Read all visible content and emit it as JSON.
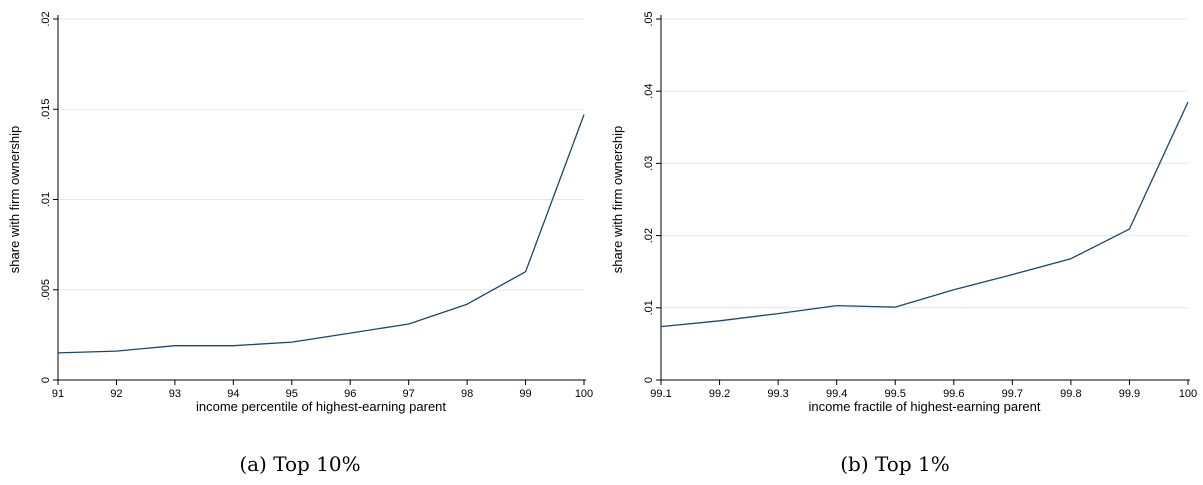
{
  "chart_data": [
    {
      "type": "line",
      "caption": "(a) Top 10%",
      "xlabel": "income percentile of highest-earning parent",
      "ylabel": "share with firm ownership",
      "x": [
        91,
        92,
        93,
        94,
        95,
        96,
        97,
        98,
        99,
        100
      ],
      "x_tick_labels": [
        "91",
        "92",
        "93",
        "94",
        "95",
        "96",
        "97",
        "98",
        "99",
        "100"
      ],
      "y_ticks": [
        0,
        0.005,
        0.01,
        0.015,
        0.02
      ],
      "y_tick_labels": [
        "0",
        ".005",
        ".01",
        ".015",
        ".02"
      ],
      "ylim": [
        0,
        0.02
      ],
      "xlim": [
        91,
        100
      ],
      "grid": "horizontal",
      "series": [
        {
          "values": [
            0.0015,
            0.0016,
            0.0019,
            0.0019,
            0.0021,
            0.0026,
            0.0031,
            0.0042,
            0.006,
            0.0147
          ]
        }
      ],
      "line_color": "#1a476f"
    },
    {
      "type": "line",
      "caption": "(b) Top 1%",
      "xlabel": "income fractile of highest-earning parent",
      "ylabel": "share with firm ownership",
      "x": [
        99.1,
        99.2,
        99.3,
        99.4,
        99.5,
        99.6,
        99.7,
        99.8,
        99.9,
        100
      ],
      "x_tick_labels": [
        "99.1",
        "99.2",
        "99.3",
        "99.4",
        "99.5",
        "99.6",
        "99.7",
        "99.8",
        "99.9",
        "100"
      ],
      "y_ticks": [
        0,
        0.01,
        0.02,
        0.03,
        0.04,
        0.05
      ],
      "y_tick_labels": [
        "0",
        ".01",
        ".02",
        ".03",
        ".04",
        ".05"
      ],
      "ylim": [
        0,
        0.05
      ],
      "xlim": [
        99.1,
        100
      ],
      "grid": "horizontal",
      "series": [
        {
          "values": [
            0.0074,
            0.0082,
            0.0092,
            0.0103,
            0.0101,
            0.0125,
            0.0146,
            0.0168,
            0.0209,
            0.0385
          ]
        }
      ],
      "line_color": "#1a476f"
    }
  ]
}
